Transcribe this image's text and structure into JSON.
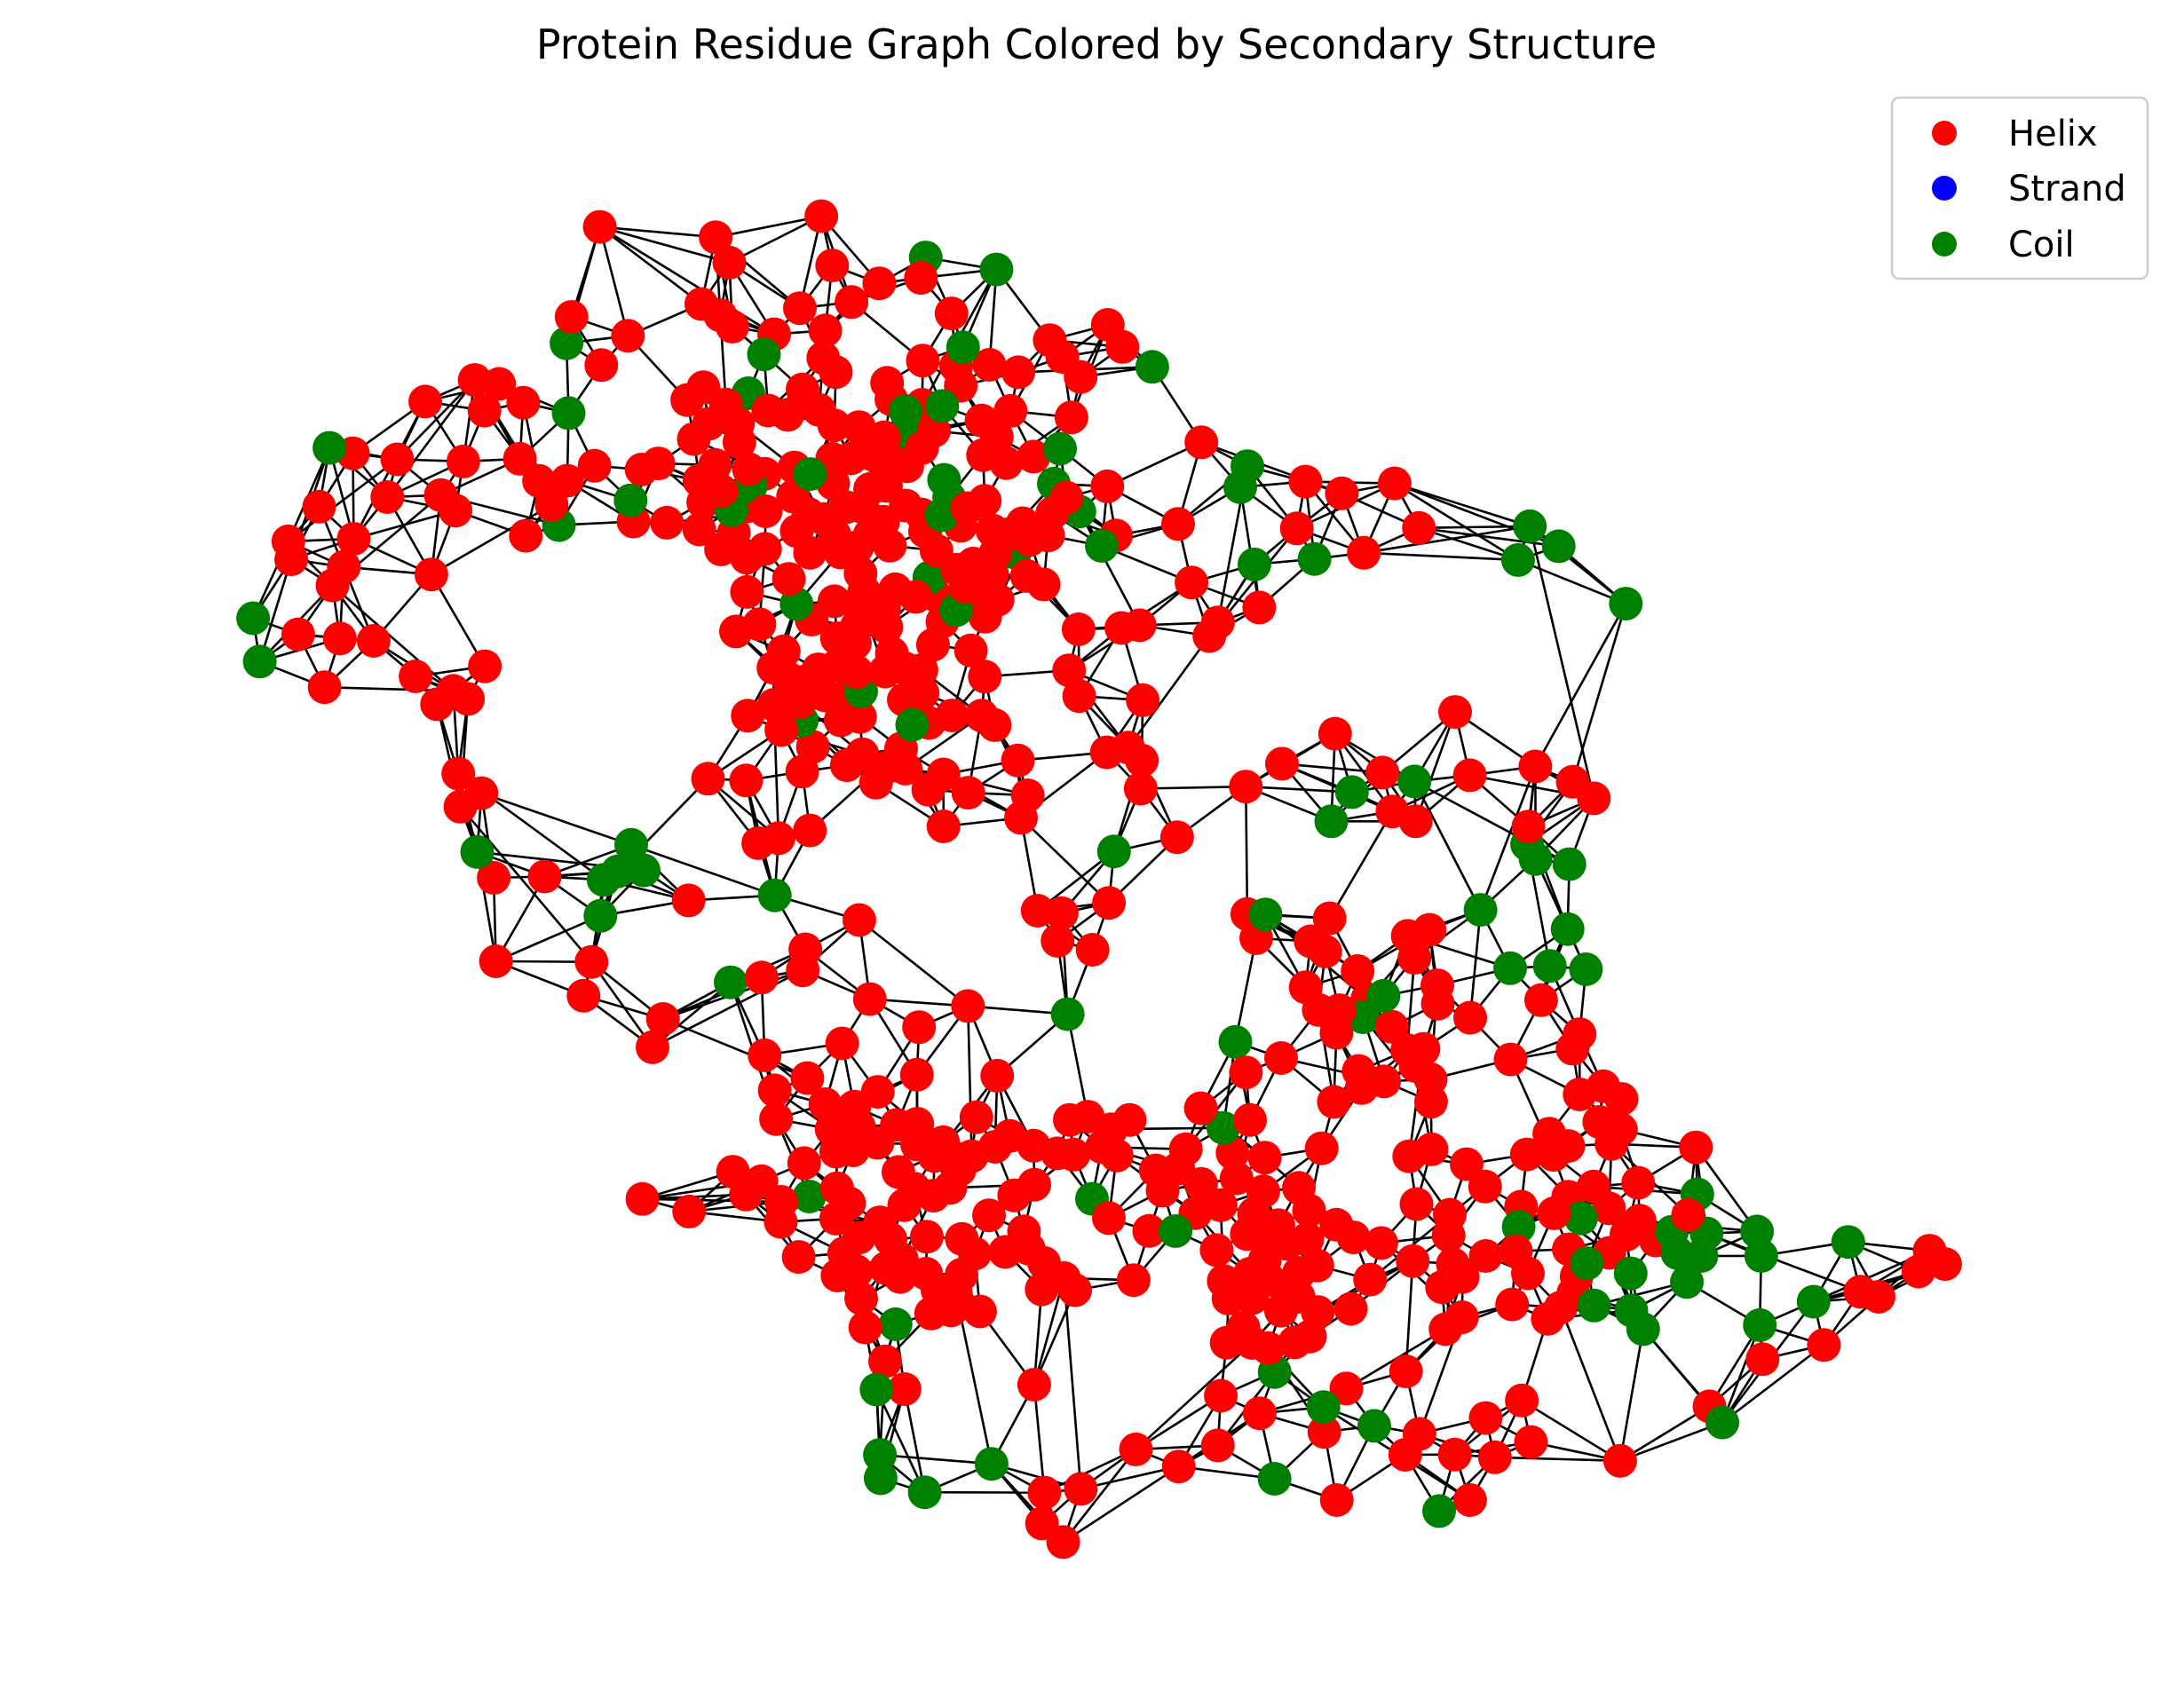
{
  "chart_data": {
    "type": "network",
    "title": "Protein Residue Graph Colored by Secondary Structure",
    "legend": {
      "placement": "top-right",
      "entries": [
        {
          "label": "Helix",
          "color": "#ff0000"
        },
        {
          "label": "Strand",
          "color": "#0000ff"
        },
        {
          "label": "Coil",
          "color": "#008000"
        }
      ]
    },
    "node_counts": {
      "Helix": 520,
      "Strand": 0,
      "Coil": 100
    },
    "edge_color": "#000000",
    "axes_visible": false
  }
}
